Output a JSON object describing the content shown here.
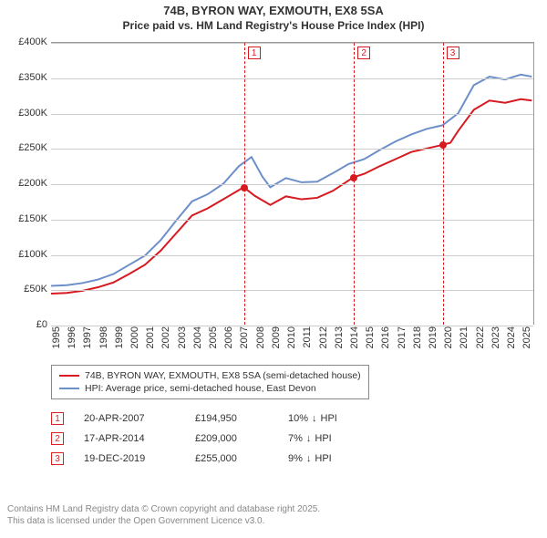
{
  "title": {
    "line1": "74B, BYRON WAY, EXMOUTH, EX8 5SA",
    "line2": "Price paid vs. HM Land Registry's House Price Index (HPI)"
  },
  "chart": {
    "type": "line",
    "background_color": "#ffffff",
    "grid_color": "#cccccc",
    "border_color": "#999999",
    "x": {
      "min": 1995,
      "max": 2025.8,
      "ticks": [
        1995,
        1996,
        1997,
        1998,
        1999,
        2000,
        2001,
        2002,
        2003,
        2004,
        2005,
        2006,
        2007,
        2008,
        2009,
        2010,
        2011,
        2012,
        2013,
        2014,
        2015,
        2016,
        2017,
        2018,
        2019,
        2020,
        2021,
        2022,
        2023,
        2024,
        2025
      ],
      "label_fontsize": 11
    },
    "y": {
      "min": 0,
      "max": 400000,
      "tick_step": 50000,
      "tick_labels": [
        "£0",
        "£50K",
        "£100K",
        "£150K",
        "£200K",
        "£250K",
        "£300K",
        "£350K",
        "£400K"
      ],
      "label_fontsize": 11
    },
    "series": [
      {
        "id": "price_paid",
        "label": "74B, BYRON WAY, EXMOUTH, EX8 5SA (semi-detached house)",
        "color": "#d71920",
        "line_width": 2,
        "points": [
          [
            1995,
            44000
          ],
          [
            1996,
            45000
          ],
          [
            1997,
            48000
          ],
          [
            1998,
            53000
          ],
          [
            1999,
            60000
          ],
          [
            2000,
            72000
          ],
          [
            2001,
            85000
          ],
          [
            2002,
            105000
          ],
          [
            2003,
            130000
          ],
          [
            2004,
            155000
          ],
          [
            2005,
            165000
          ],
          [
            2006,
            178000
          ],
          [
            2007.3,
            194950
          ],
          [
            2008,
            183000
          ],
          [
            2009,
            170000
          ],
          [
            2010,
            182000
          ],
          [
            2011,
            178000
          ],
          [
            2012,
            180000
          ],
          [
            2013,
            190000
          ],
          [
            2014.3,
            209000
          ],
          [
            2015,
            214000
          ],
          [
            2016,
            225000
          ],
          [
            2017,
            235000
          ],
          [
            2018,
            245000
          ],
          [
            2019.96,
            255000
          ],
          [
            2020.5,
            258000
          ],
          [
            2021,
            275000
          ],
          [
            2022,
            305000
          ],
          [
            2023,
            318000
          ],
          [
            2024,
            315000
          ],
          [
            2025,
            320000
          ],
          [
            2025.7,
            318000
          ]
        ]
      },
      {
        "id": "hpi",
        "label": "HPI: Average price, semi-detached house, East Devon",
        "color": "#6d8fc9",
        "line_width": 2,
        "points": [
          [
            1995,
            55000
          ],
          [
            1996,
            56000
          ],
          [
            1997,
            59000
          ],
          [
            1998,
            64000
          ],
          [
            1999,
            72000
          ],
          [
            2000,
            85000
          ],
          [
            2001,
            98000
          ],
          [
            2002,
            120000
          ],
          [
            2003,
            148000
          ],
          [
            2004,
            175000
          ],
          [
            2005,
            185000
          ],
          [
            2006,
            200000
          ],
          [
            2007,
            225000
          ],
          [
            2007.8,
            238000
          ],
          [
            2008.5,
            210000
          ],
          [
            2009,
            195000
          ],
          [
            2010,
            208000
          ],
          [
            2011,
            202000
          ],
          [
            2012,
            203000
          ],
          [
            2013,
            215000
          ],
          [
            2014,
            228000
          ],
          [
            2015,
            235000
          ],
          [
            2016,
            248000
          ],
          [
            2017,
            260000
          ],
          [
            2018,
            270000
          ],
          [
            2019,
            278000
          ],
          [
            2020,
            283000
          ],
          [
            2021,
            300000
          ],
          [
            2022,
            340000
          ],
          [
            2023,
            352000
          ],
          [
            2024,
            348000
          ],
          [
            2025,
            355000
          ],
          [
            2025.7,
            352000
          ]
        ]
      }
    ],
    "markers": [
      {
        "n": "1",
        "x": 2007.3,
        "y": 194950,
        "color": "#d71920"
      },
      {
        "n": "2",
        "x": 2014.3,
        "y": 209000,
        "color": "#d71920"
      },
      {
        "n": "3",
        "x": 2019.96,
        "y": 255000,
        "color": "#d71920"
      }
    ],
    "vlines": [
      {
        "n": "1",
        "x": 2007.3,
        "color": "#d71920"
      },
      {
        "n": "2",
        "x": 2014.3,
        "color": "#d71920"
      },
      {
        "n": "3",
        "x": 2019.96,
        "color": "#d71920"
      }
    ]
  },
  "legend": {
    "items": [
      {
        "color": "#d71920",
        "label": "74B, BYRON WAY, EXMOUTH, EX8 5SA (semi-detached house)"
      },
      {
        "color": "#6d8fc9",
        "label": "HPI: Average price, semi-detached house, East Devon"
      }
    ]
  },
  "events": [
    {
      "n": "1",
      "date": "20-APR-2007",
      "price": "£194,950",
      "delta_pct": "10%",
      "arrow": "↓",
      "delta_label": "HPI"
    },
    {
      "n": "2",
      "date": "17-APR-2014",
      "price": "£209,000",
      "delta_pct": "7%",
      "arrow": "↓",
      "delta_label": "HPI"
    },
    {
      "n": "3",
      "date": "19-DEC-2019",
      "price": "£255,000",
      "delta_pct": "9%",
      "arrow": "↓",
      "delta_label": "HPI"
    }
  ],
  "attribution": {
    "line1": "Contains HM Land Registry data © Crown copyright and database right 2025.",
    "line2": "This data is licensed under the Open Government Licence v3.0."
  }
}
